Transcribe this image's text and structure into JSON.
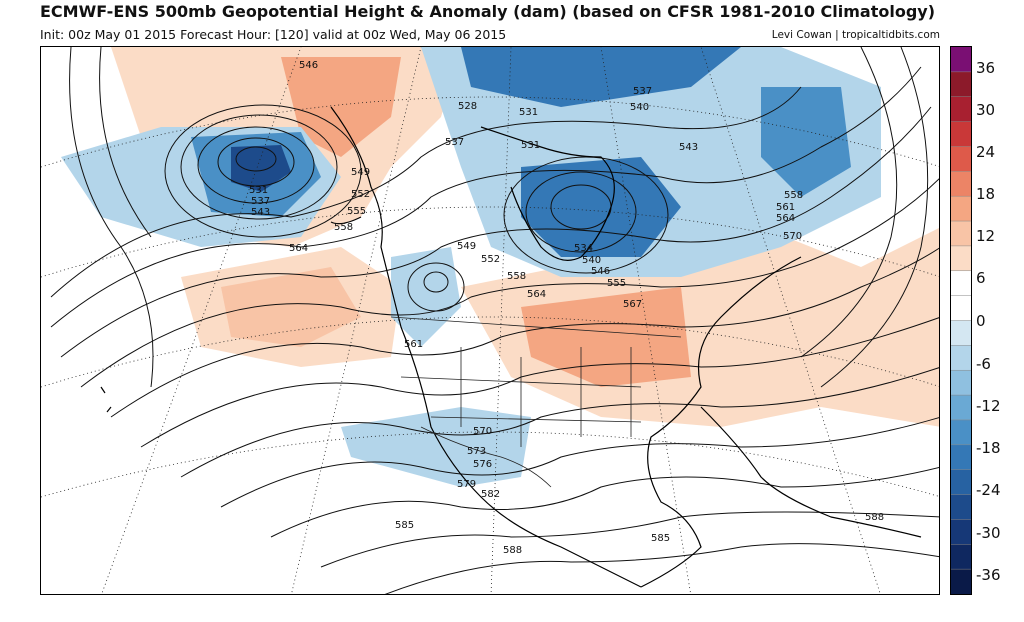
{
  "header": {
    "title": "ECMWF-ENS 500mb Geopotential Height & Anomaly (dam) (based on CFSR 1981-2010 Climatology)",
    "subtitle": "Init: 00z May 01 2015   Forecast Hour: [120]   valid at 00z Wed, May 06 2015",
    "credit": "Levi Cowan | tropicaltidbits.com"
  },
  "colorbar": {
    "ticks": [
      "36",
      "30",
      "24",
      "18",
      "12",
      "6",
      "0",
      "-6",
      "-12",
      "-18",
      "-24",
      "-30",
      "-36"
    ],
    "colors": [
      "#7a0f73",
      "#8c1a2a",
      "#a82030",
      "#c93838",
      "#de5a4a",
      "#ec8466",
      "#f4a682",
      "#f8c4a6",
      "#fbdcc6",
      "#ffffff",
      "#ffffff",
      "#d4e7f2",
      "#b3d5ea",
      "#8fc0e0",
      "#6aa9d4",
      "#4a90c6",
      "#3478b6",
      "#2762a2",
      "#1d4b8b",
      "#163877",
      "#0f2860",
      "#0a1a48"
    ]
  },
  "contour_labels": [
    {
      "text": "546"
    },
    {
      "text": "528"
    },
    {
      "text": "531"
    },
    {
      "text": "537"
    },
    {
      "text": "540"
    },
    {
      "text": "543"
    },
    {
      "text": "531"
    },
    {
      "text": "537"
    },
    {
      "text": "543"
    },
    {
      "text": "549"
    },
    {
      "text": "552"
    },
    {
      "text": "555"
    },
    {
      "text": "558"
    },
    {
      "text": "564"
    },
    {
      "text": "537"
    },
    {
      "text": "531"
    },
    {
      "text": "549"
    },
    {
      "text": "552"
    },
    {
      "text": "558"
    },
    {
      "text": "564"
    },
    {
      "text": "534"
    },
    {
      "text": "540"
    },
    {
      "text": "546"
    },
    {
      "text": "555"
    },
    {
      "text": "567"
    },
    {
      "text": "558"
    },
    {
      "text": "561"
    },
    {
      "text": "564"
    },
    {
      "text": "570"
    },
    {
      "text": "561"
    },
    {
      "text": "570"
    },
    {
      "text": "573"
    },
    {
      "text": "576"
    },
    {
      "text": "579"
    },
    {
      "text": "582"
    },
    {
      "text": "585"
    },
    {
      "text": "588"
    },
    {
      "text": "585"
    },
    {
      "text": "588"
    }
  ]
}
